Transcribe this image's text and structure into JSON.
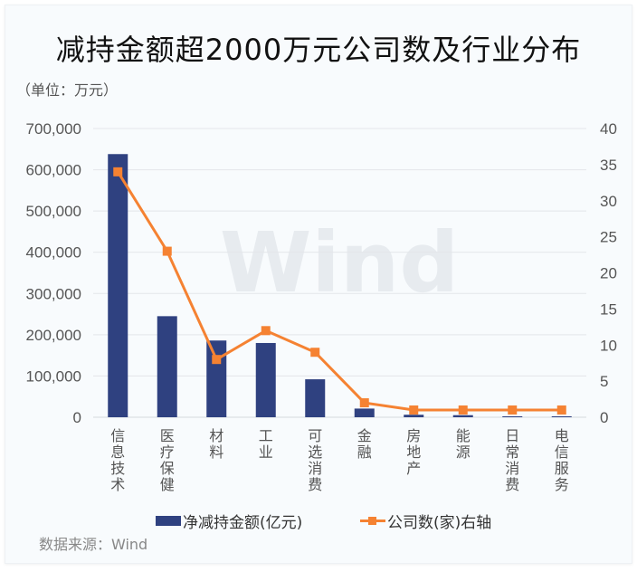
{
  "title": "减持金额超2000万元公司数及行业分布",
  "unit": "（单位：万元）",
  "source": "数据来源：Wind",
  "watermark": "Wind",
  "legend": {
    "bar_label": "净减持金额(亿元)",
    "line_label": "公司数(家)右轴"
  },
  "colors": {
    "bar": "#2f4180",
    "line": "#f58232",
    "grid": "#e3e6ea",
    "axis_text": "#555555"
  },
  "left_axis_ticks": [
    "0",
    "100,000",
    "200,000",
    "300,000",
    "400,000",
    "500,000",
    "600,000",
    "700,000"
  ],
  "right_axis_ticks": [
    "0",
    "5",
    "10",
    "15",
    "20",
    "25",
    "30",
    "35",
    "40"
  ],
  "chart_data": {
    "type": "bar",
    "title": "减持金额超2000万元公司数及行业分布",
    "subtitle": "（单位：万元）",
    "categories": [
      "信息技术",
      "医疗保健",
      "材料",
      "工业",
      "可选消费",
      "金融",
      "房地产",
      "能源",
      "日常消费",
      "电信服务"
    ],
    "series": [
      {
        "name": "净减持金额(亿元)",
        "type": "bar",
        "axis": "left",
        "values": [
          638000,
          245000,
          186000,
          180000,
          92000,
          21000,
          6000,
          5000,
          2000,
          0
        ]
      },
      {
        "name": "公司数(家)右轴",
        "type": "line",
        "axis": "right",
        "values": [
          34,
          23,
          8,
          12,
          9,
          2,
          1,
          1,
          1,
          1
        ]
      }
    ],
    "xlabel": "",
    "ylabel": "",
    "ylim": [
      0,
      700000
    ],
    "y2lim": [
      0,
      40
    ],
    "grid": true,
    "legend_position": "bottom"
  }
}
